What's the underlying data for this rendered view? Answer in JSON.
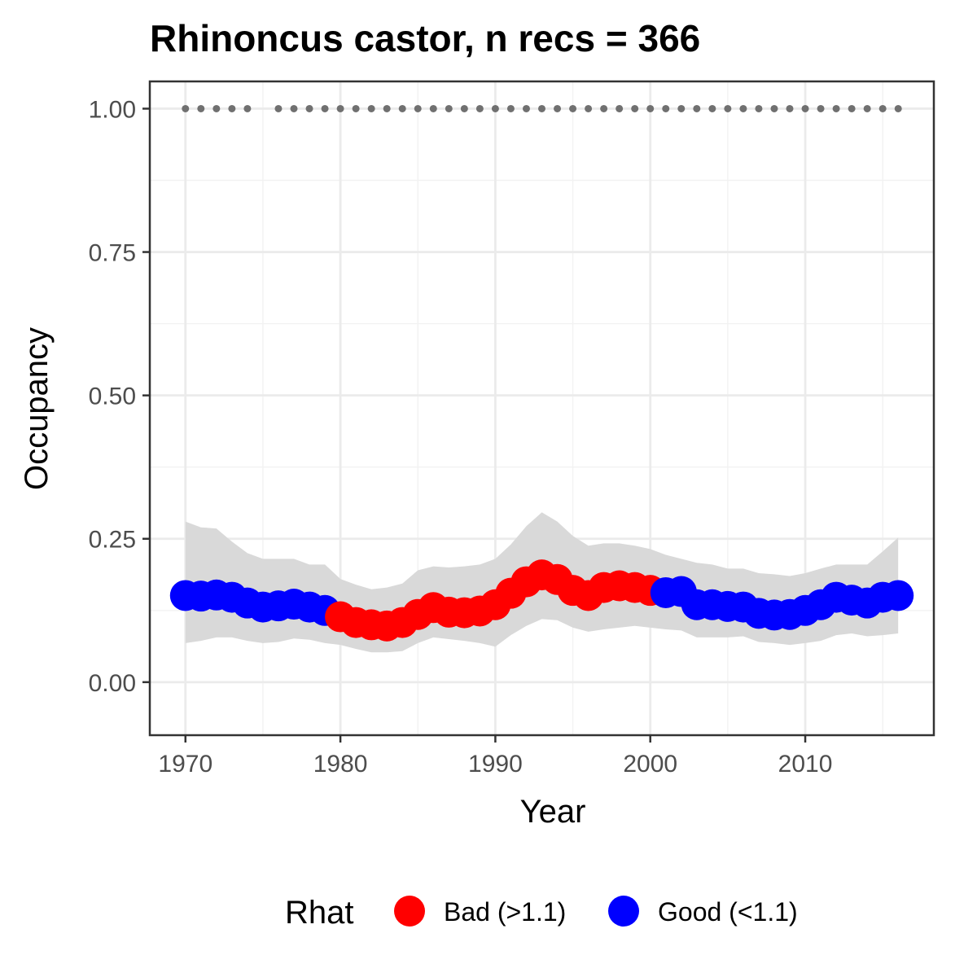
{
  "chart_data": {
    "type": "line",
    "title": "Rhinoncus castor, n recs = 366",
    "xlabel": "Year",
    "ylabel": "Occupancy",
    "xlim": [
      1967.7,
      2018.3
    ],
    "ylim": [
      -0.0925,
      1.0475
    ],
    "x_ticks": [
      1970,
      1980,
      1990,
      2000,
      2010
    ],
    "x_tick_labels": [
      "1970",
      "1980",
      "1990",
      "2000",
      "2010"
    ],
    "y_ticks": [
      0,
      0.25,
      0.5,
      0.75,
      1.0
    ],
    "y_tick_labels": [
      "0.00",
      "0.25",
      "0.50",
      "0.75",
      "1.00"
    ],
    "grid": true,
    "legend": {
      "title": "Rhat",
      "position": "bottom",
      "entries": [
        {
          "label": "Bad (>1.1)",
          "color": "#ff0000"
        },
        {
          "label": "Good (<1.1)",
          "color": "#0000ff"
        }
      ]
    },
    "colors": {
      "bad": "#ff0000",
      "good": "#0000ff",
      "ribbon": "#d9d9d9",
      "record_dots": "#707070"
    },
    "years": [
      1970,
      1971,
      1972,
      1973,
      1974,
      1975,
      1976,
      1977,
      1978,
      1979,
      1980,
      1981,
      1982,
      1983,
      1984,
      1985,
      1986,
      1987,
      1988,
      1989,
      1990,
      1991,
      1992,
      1993,
      1994,
      1995,
      1996,
      1997,
      1998,
      1999,
      2000,
      2001,
      2002,
      2003,
      2004,
      2005,
      2006,
      2007,
      2008,
      2009,
      2010,
      2011,
      2012,
      2013,
      2014,
      2015,
      2016
    ],
    "occupancy": [
      0.151,
      0.15,
      0.152,
      0.148,
      0.138,
      0.131,
      0.133,
      0.136,
      0.131,
      0.125,
      0.114,
      0.104,
      0.1,
      0.098,
      0.104,
      0.118,
      0.13,
      0.122,
      0.121,
      0.124,
      0.135,
      0.155,
      0.175,
      0.187,
      0.179,
      0.16,
      0.151,
      0.165,
      0.168,
      0.165,
      0.16,
      0.156,
      0.158,
      0.135,
      0.135,
      0.132,
      0.131,
      0.12,
      0.117,
      0.118,
      0.125,
      0.135,
      0.148,
      0.143,
      0.138,
      0.148,
      0.151
    ],
    "rhat": [
      "good",
      "good",
      "good",
      "good",
      "good",
      "good",
      "good",
      "good",
      "good",
      "good",
      "bad",
      "bad",
      "bad",
      "bad",
      "bad",
      "bad",
      "bad",
      "bad",
      "bad",
      "bad",
      "bad",
      "bad",
      "bad",
      "bad",
      "bad",
      "bad",
      "bad",
      "bad",
      "bad",
      "bad",
      "bad",
      "good",
      "good",
      "good",
      "good",
      "good",
      "good",
      "good",
      "good",
      "good",
      "good",
      "good",
      "good",
      "good",
      "good",
      "good",
      "good"
    ],
    "ribbon_upper": [
      0.28,
      0.27,
      0.268,
      0.245,
      0.225,
      0.215,
      0.215,
      0.215,
      0.205,
      0.205,
      0.18,
      0.17,
      0.162,
      0.165,
      0.172,
      0.195,
      0.202,
      0.2,
      0.202,
      0.205,
      0.215,
      0.24,
      0.272,
      0.296,
      0.28,
      0.255,
      0.238,
      0.242,
      0.242,
      0.238,
      0.232,
      0.222,
      0.215,
      0.208,
      0.205,
      0.198,
      0.198,
      0.19,
      0.188,
      0.185,
      0.19,
      0.198,
      0.205,
      0.205,
      0.205,
      0.228,
      0.252
    ],
    "ribbon_lower": [
      0.068,
      0.072,
      0.078,
      0.078,
      0.072,
      0.068,
      0.07,
      0.076,
      0.074,
      0.068,
      0.065,
      0.058,
      0.052,
      0.052,
      0.054,
      0.068,
      0.078,
      0.075,
      0.072,
      0.068,
      0.062,
      0.082,
      0.098,
      0.11,
      0.108,
      0.095,
      0.088,
      0.092,
      0.095,
      0.098,
      0.095,
      0.092,
      0.09,
      0.078,
      0.078,
      0.078,
      0.08,
      0.07,
      0.068,
      0.065,
      0.068,
      0.072,
      0.082,
      0.085,
      0.08,
      0.082,
      0.085
    ],
    "record_years": [
      1970,
      1971,
      1972,
      1973,
      1974,
      1976,
      1977,
      1978,
      1979,
      1980,
      1981,
      1982,
      1983,
      1984,
      1985,
      1986,
      1987,
      1988,
      1989,
      1990,
      1991,
      1992,
      1993,
      1994,
      1995,
      1996,
      1997,
      1998,
      1999,
      2000,
      2001,
      2002,
      2003,
      2004,
      2005,
      2006,
      2007,
      2008,
      2009,
      2010,
      2011,
      2012,
      2013,
      2014,
      2015,
      2016
    ],
    "record_value": 1.0
  }
}
